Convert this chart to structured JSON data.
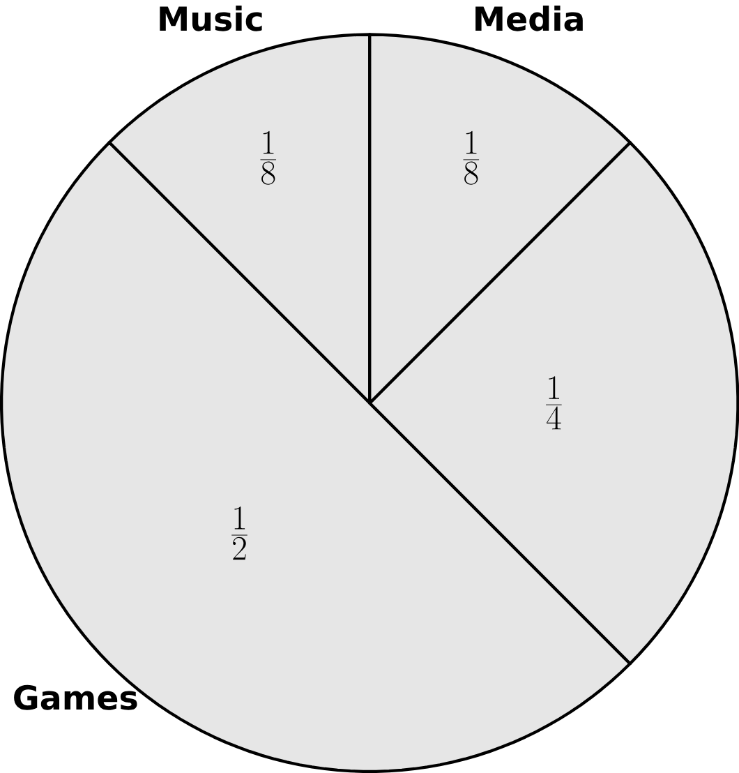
{
  "chart_data": {
    "type": "pie",
    "categories": [
      "Music",
      "Games",
      null,
      "Media"
    ],
    "values": [
      12.5,
      50,
      25,
      12.5
    ],
    "value_labels": [
      "\\frac{1}{8}",
      "\\frac{1}{2}",
      "\\frac{1}{4}",
      "\\frac{1}{8}"
    ],
    "colors": [
      "#e6e6e6",
      "#e6e6e6",
      "#e6e6e6",
      "#e6e6e6"
    ]
  }
}
